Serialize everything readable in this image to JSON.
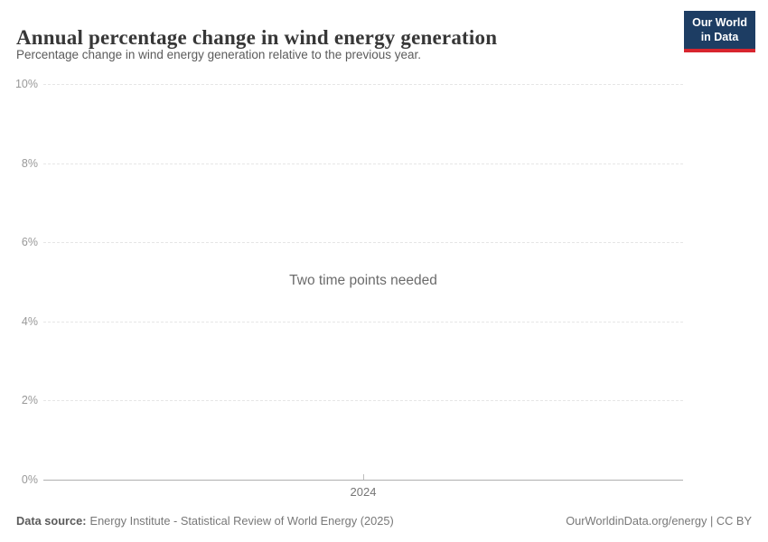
{
  "header": {
    "title": "Annual percentage change in wind energy generation",
    "subtitle": "Percentage change in wind energy generation relative to the previous year.",
    "logo": {
      "line1": "Our World",
      "line2": "in Data"
    }
  },
  "chart_data": {
    "type": "line",
    "title": "Annual percentage change in wind energy generation",
    "subtitle": "Percentage change in wind energy generation relative to the previous year.",
    "empty_state_message": "Two time points needed",
    "series": [],
    "x_axis": {
      "ticks": [
        "2024"
      ]
    },
    "y_axis": {
      "min": 0,
      "max": 10,
      "unit": "%",
      "ticks": [
        {
          "value": 0,
          "label": "0%"
        },
        {
          "value": 2,
          "label": "2%"
        },
        {
          "value": 4,
          "label": "4%"
        },
        {
          "value": 6,
          "label": "6%"
        },
        {
          "value": 8,
          "label": "8%"
        },
        {
          "value": 10,
          "label": "10%"
        }
      ]
    },
    "grid": true,
    "legend": "none"
  },
  "footer": {
    "data_source_label": "Data source:",
    "data_source_value": "Energy Institute - Statistical Review of World Energy (2025)",
    "attribution": "OurWorldinData.org/energy | CC BY"
  },
  "colors": {
    "logo_background": "#1d3d63",
    "logo_accent": "#d8252e",
    "title_text": "#373737",
    "subtitle_text": "#5b5b5b",
    "axis_label": "#999999",
    "gridline": "#e6e6e6",
    "axis_line": "#b0b0b0",
    "message_text": "#6b6b6b",
    "footer_text": "#787878"
  }
}
